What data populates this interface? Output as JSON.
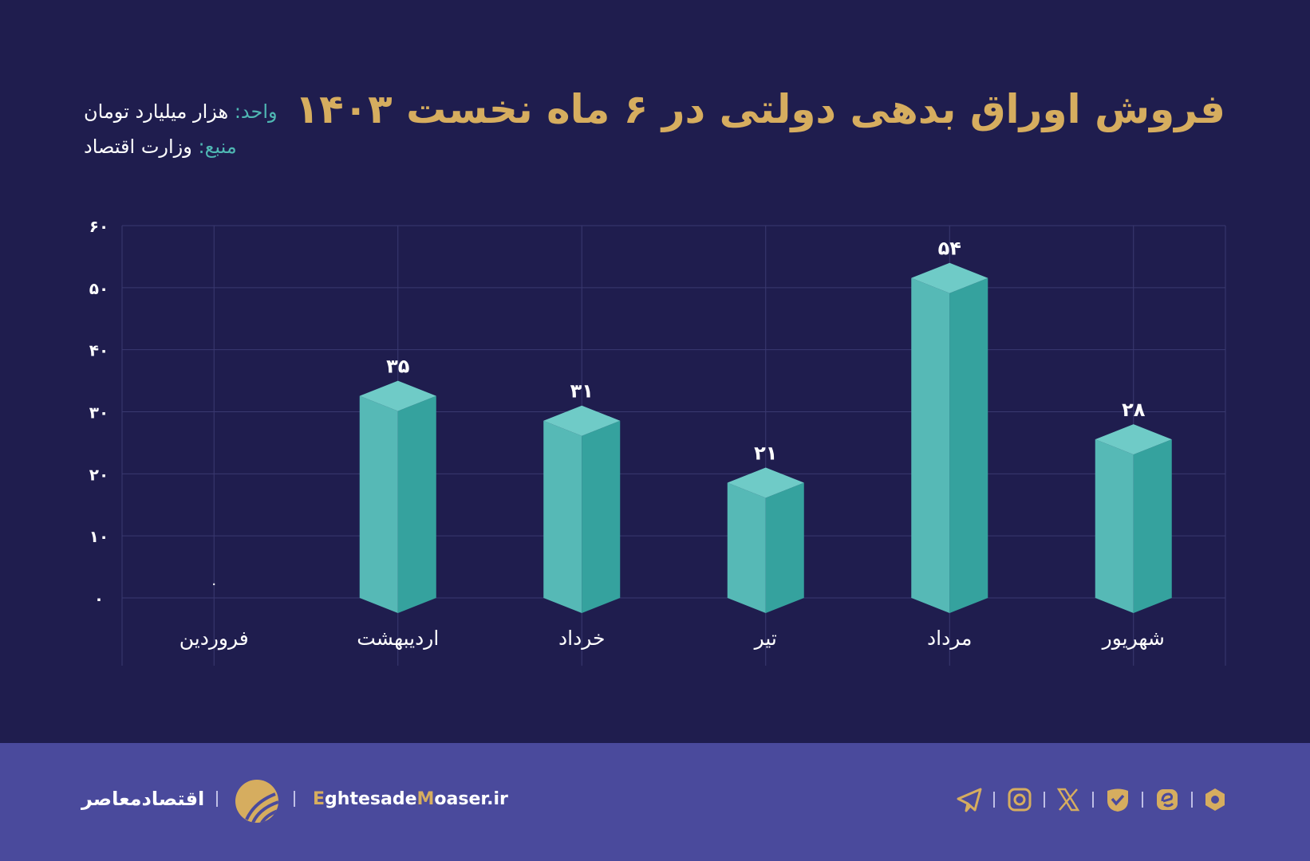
{
  "title": "فروش اوراق بدهی دولتی در ۶ ماه نخست ۱۴۰۳",
  "unit": {
    "label": "واحد:",
    "value": "هزار میلیارد تومان"
  },
  "source": {
    "label": "منبع:",
    "value": "وزارت اقتصاد"
  },
  "chart_data": {
    "type": "bar",
    "title": "فروش اوراق بدهی دولتی در ۶ ماه نخست ۱۴۰۳",
    "categories": [
      "فروردین",
      "اردیبهشت",
      "خرداد",
      "تیر",
      "مرداد",
      "شهریور"
    ],
    "values": [
      0,
      35,
      31,
      21,
      54,
      28
    ],
    "value_labels": [
      "۰",
      "۳۵",
      "۳۱",
      "۲۱",
      "۵۴",
      "۲۸"
    ],
    "ylim": [
      0,
      60
    ],
    "yticks": [
      0,
      10,
      20,
      30,
      40,
      50,
      60
    ],
    "ytick_labels": [
      "۰",
      "۱۰",
      "۲۰",
      "۳۰",
      "۴۰",
      "۵۰",
      "۶۰"
    ],
    "grid": true,
    "style": "3d-prism",
    "colors": {
      "left": "#56b9b6",
      "right": "#35a29e",
      "top": "#6fcbc7",
      "grid": "#3a3970"
    }
  },
  "footer": {
    "brand": "اقتصادمعاصر",
    "site_parts": [
      "E",
      "ghtesade",
      "M",
      "oaser.ir"
    ],
    "icons": [
      "telegram-icon",
      "instagram-icon",
      "x-icon",
      "eitaa-icon",
      "rubika-icon",
      "bale-icon"
    ],
    "accent": "#d6ad5f",
    "background": "#4a4a9c"
  }
}
